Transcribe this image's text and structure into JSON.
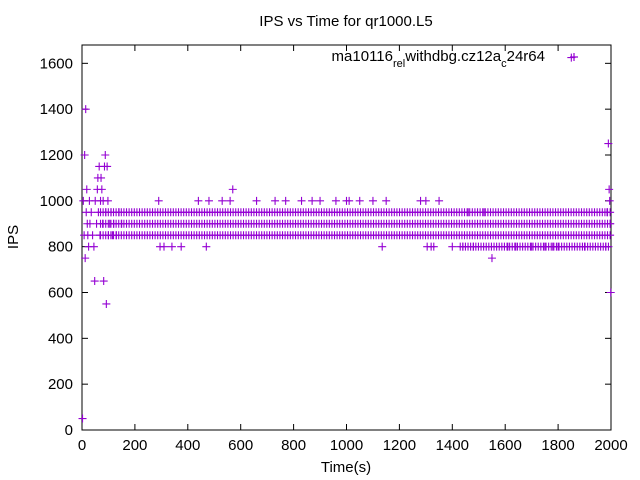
{
  "chart_data": {
    "type": "scatter",
    "title": "IPS vs Time for qr1000.L5",
    "xlabel": "Time(s)",
    "ylabel": "IPS",
    "xlim": [
      0,
      2000
    ],
    "ylim": [
      0,
      1680
    ],
    "xticks": [
      "0",
      "200",
      "400",
      "600",
      "800",
      "1000",
      "1200",
      "1400",
      "1600",
      "1800",
      "2000"
    ],
    "yticks": [
      "0",
      "200",
      "400",
      "600",
      "800",
      "1000",
      "1200",
      "1400",
      "1600"
    ],
    "grid": false,
    "legend_position": "top-right",
    "marker": "+",
    "series": [
      {
        "name": "ma10116_rel_withdbg.cz12a_c24r64",
        "name_parts": [
          {
            "text": "ma10116",
            "sub": false
          },
          {
            "text": "rel",
            "sub": true
          },
          {
            "text": "withdbg.cz12a",
            "sub": false
          },
          {
            "text": "c",
            "sub": true
          },
          {
            "text": "24r64",
            "sub": false
          }
        ],
        "color": "#9400d3",
        "points": [
          [
            2,
            50
          ],
          [
            5,
            1000
          ],
          [
            8,
            850
          ],
          [
            10,
            1200
          ],
          [
            12,
            750
          ],
          [
            14,
            1400
          ],
          [
            16,
            950
          ],
          [
            18,
            1050
          ],
          [
            20,
            900
          ],
          [
            22,
            850
          ],
          [
            25,
            800
          ],
          [
            28,
            1000
          ],
          [
            30,
            900
          ],
          [
            35,
            950
          ],
          [
            40,
            850
          ],
          [
            45,
            800
          ],
          [
            48,
            650
          ],
          [
            50,
            1000
          ],
          [
            55,
            900
          ],
          [
            58,
            1050
          ],
          [
            60,
            1100
          ],
          [
            62,
            950
          ],
          [
            65,
            1150
          ],
          [
            68,
            850
          ],
          [
            70,
            1000
          ],
          [
            72,
            1100
          ],
          [
            75,
            1050
          ],
          [
            78,
            900
          ],
          [
            80,
            1000
          ],
          [
            82,
            650
          ],
          [
            85,
            1150
          ],
          [
            88,
            1200
          ],
          [
            90,
            950
          ],
          [
            92,
            550
          ],
          [
            95,
            1150
          ],
          [
            98,
            1000
          ],
          [
            100,
            850
          ],
          [
            105,
            900
          ],
          [
            110,
            950
          ],
          [
            115,
            850
          ],
          [
            120,
            900
          ],
          [
            130,
            850
          ],
          [
            140,
            950
          ],
          [
            150,
            900
          ],
          [
            290,
            1000
          ],
          [
            295,
            800
          ],
          [
            310,
            800
          ],
          [
            340,
            800
          ],
          [
            375,
            800
          ],
          [
            440,
            1000
          ],
          [
            470,
            800
          ],
          [
            480,
            1000
          ],
          [
            530,
            1000
          ],
          [
            560,
            1000
          ],
          [
            570,
            1050
          ],
          [
            660,
            1000
          ],
          [
            730,
            1000
          ],
          [
            770,
            1000
          ],
          [
            830,
            1000
          ],
          [
            870,
            1000
          ],
          [
            900,
            1000
          ],
          [
            960,
            1000
          ],
          [
            1000,
            1000
          ],
          [
            1010,
            1000
          ],
          [
            1050,
            1000
          ],
          [
            1100,
            1000
          ],
          [
            1135,
            800
          ],
          [
            1150,
            1000
          ],
          [
            1280,
            1000
          ],
          [
            1300,
            1000
          ],
          [
            1305,
            800
          ],
          [
            1320,
            800
          ],
          [
            1330,
            800
          ],
          [
            1350,
            1000
          ],
          [
            1400,
            800
          ],
          [
            1440,
            800
          ],
          [
            1460,
            950
          ],
          [
            1480,
            800
          ],
          [
            1520,
            950
          ],
          [
            1550,
            750
          ],
          [
            1610,
            800
          ],
          [
            1640,
            800
          ],
          [
            1700,
            800
          ],
          [
            1750,
            800
          ],
          [
            1780,
            800
          ],
          [
            1800,
            800
          ],
          [
            1850,
            1625
          ],
          [
            1900,
            800
          ],
          [
            1980,
            800
          ],
          [
            1985,
            950
          ],
          [
            1990,
            1250
          ],
          [
            1993,
            1050
          ],
          [
            1995,
            1000
          ],
          [
            1997,
            900
          ],
          [
            1999,
            600
          ]
        ],
        "dense_bands": [
          {
            "y": 950,
            "x_start": 70,
            "x_end": 1998
          },
          {
            "y": 900,
            "x_start": 70,
            "x_end": 1998
          },
          {
            "y": 850,
            "x_start": 70,
            "x_end": 1998
          },
          {
            "y": 800,
            "x_start": 1430,
            "x_end": 1998
          }
        ]
      }
    ]
  }
}
